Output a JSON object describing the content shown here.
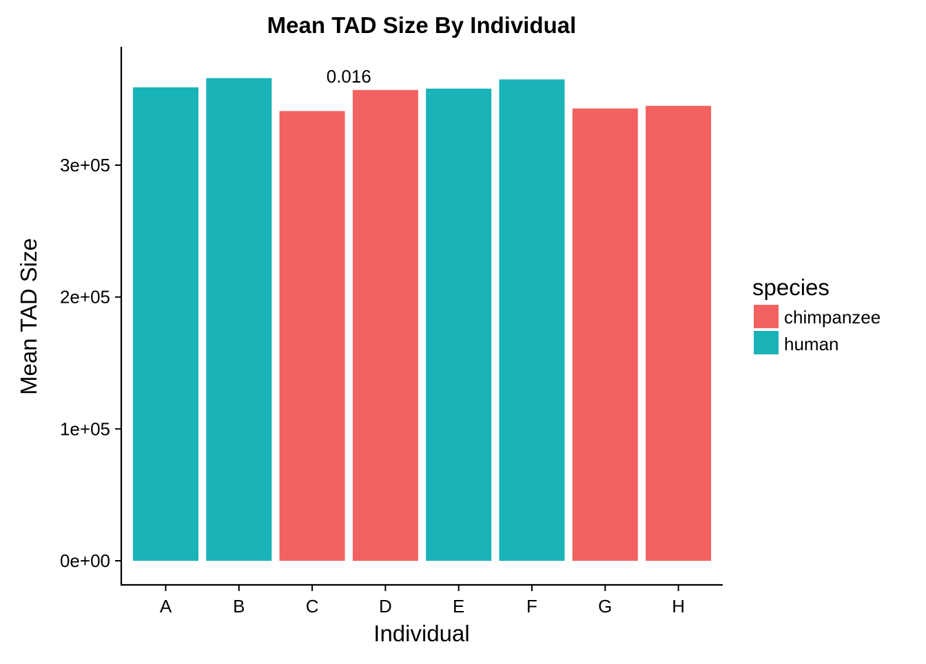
{
  "chart_data": {
    "type": "bar",
    "title": "Mean TAD Size By Individual",
    "xlabel": "Individual",
    "ylabel": "Mean TAD Size",
    "categories": [
      "A",
      "B",
      "C",
      "D",
      "E",
      "F",
      "G",
      "H"
    ],
    "values": [
      359000,
      366000,
      341000,
      357000,
      358000,
      365000,
      343000,
      345000
    ],
    "species": [
      "human",
      "human",
      "chimpanzee",
      "chimpanzee",
      "human",
      "human",
      "chimpanzee",
      "chimpanzee"
    ],
    "ylim": [
      0,
      388000
    ],
    "yticks": [
      0,
      100000,
      200000,
      300000
    ],
    "ytick_labels": [
      "0e+00",
      "1e+05",
      "2e+05",
      "3e+05"
    ],
    "grid": false,
    "annotation": {
      "text": "0.016",
      "category": "C",
      "anchor_value": 370000
    },
    "legend": {
      "title": "species",
      "placement": "right",
      "entries": [
        {
          "label": "chimpanzee",
          "color": "#F26260"
        },
        {
          "label": "human",
          "color": "#19B3B8"
        }
      ]
    },
    "colors": {
      "chimpanzee": "#F26260",
      "human": "#19B3B8"
    }
  }
}
